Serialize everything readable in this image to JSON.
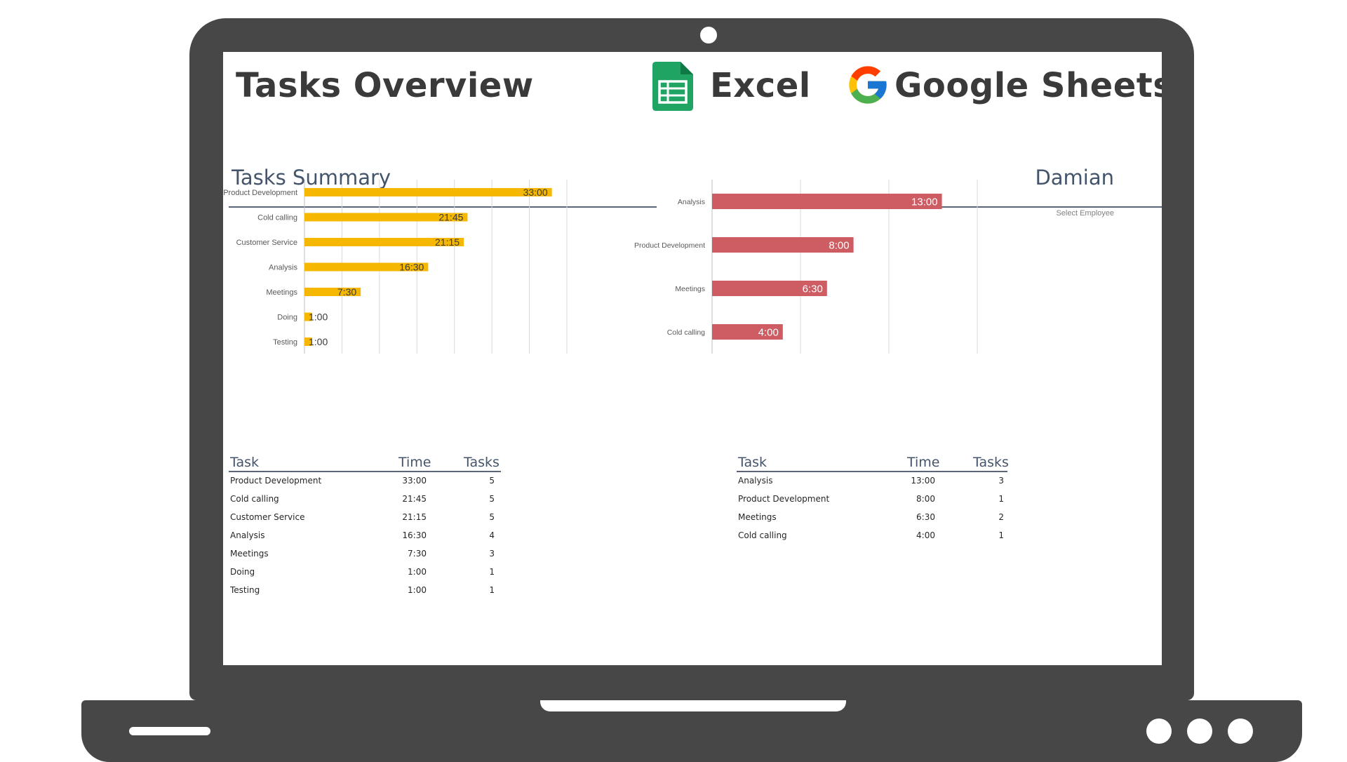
{
  "header": {
    "title": "Tasks Overview",
    "excel_label": "Excel",
    "sheets_label": "Google Sheets",
    "sheets_icon": "google-sheets-icon",
    "google_icon": "google-g-icon"
  },
  "summary": {
    "title": "Tasks Summary",
    "table_headers": [
      "Task",
      "Time",
      "Tasks"
    ],
    "rows": [
      {
        "task": "Product Development",
        "time": "33:00",
        "tasks": "5"
      },
      {
        "task": "Cold calling",
        "time": "21:45",
        "tasks": "5"
      },
      {
        "task": "Customer Service",
        "time": "21:15",
        "tasks": "5"
      },
      {
        "task": "Analysis",
        "time": "16:30",
        "tasks": "4"
      },
      {
        "task": "Meetings",
        "time": "7:30",
        "tasks": "3"
      },
      {
        "task": "Doing",
        "time": "1:00",
        "tasks": "1"
      },
      {
        "task": "Testing",
        "time": "1:00",
        "tasks": "1"
      }
    ]
  },
  "employee": {
    "name": "Damian",
    "select_label": "Select Employee",
    "table_headers": [
      "Task",
      "Time",
      "Tasks"
    ],
    "rows": [
      {
        "task": "Analysis",
        "time": "13:00",
        "tasks": "3"
      },
      {
        "task": "Product Development",
        "time": "8:00",
        "tasks": "1"
      },
      {
        "task": "Meetings",
        "time": "6:30",
        "tasks": "2"
      },
      {
        "task": "Cold calling",
        "time": "4:00",
        "tasks": "1"
      }
    ]
  },
  "colors": {
    "summary_bar": "#f5b700",
    "employee_bar": "#cd5c63",
    "heading": "#44546a",
    "frame": "#474747"
  },
  "chart_data": [
    {
      "type": "bar",
      "orientation": "horizontal",
      "categories": [
        "Product Development",
        "Cold calling",
        "Customer Service",
        "Analysis",
        "Meetings",
        "Doing",
        "Testing"
      ],
      "values": [
        33.0,
        21.75,
        21.25,
        16.5,
        7.5,
        1.0,
        1.0
      ],
      "labels": [
        "33:00",
        "21:45",
        "21:15",
        "16:30",
        "7:30",
        "1:00",
        "1:00"
      ],
      "xlim": [
        0,
        35
      ],
      "grid": true,
      "legend": "none"
    },
    {
      "type": "bar",
      "orientation": "horizontal",
      "categories": [
        "Analysis",
        "Product Development",
        "Meetings",
        "Cold calling"
      ],
      "values": [
        13.0,
        8.0,
        6.5,
        4.0
      ],
      "labels": [
        "13:00",
        "8:00",
        "6:30",
        "4:00"
      ],
      "xlim": [
        0,
        15
      ],
      "grid": true,
      "legend": "none"
    }
  ]
}
